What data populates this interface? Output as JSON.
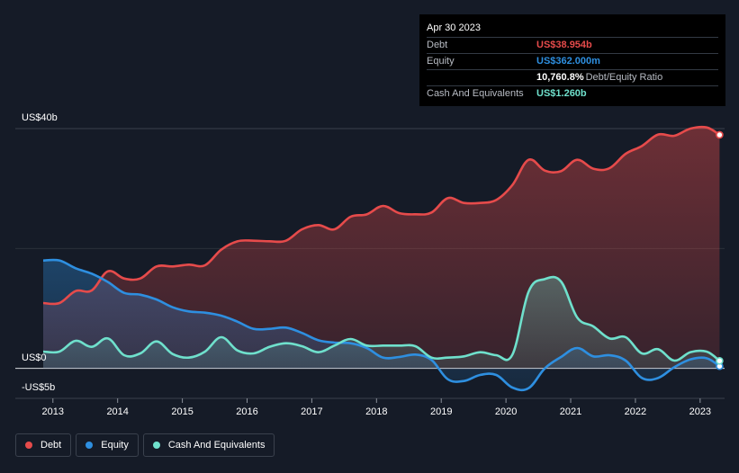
{
  "tooltip": {
    "date": "Apr 30 2023",
    "debt_label": "Debt",
    "debt_value": "US$38.954b",
    "equity_label": "Equity",
    "equity_value": "US$362.000m",
    "ratio_value": "10,760.8%",
    "ratio_label": "Debt/Equity Ratio",
    "cash_label": "Cash And Equivalents",
    "cash_value": "US$1.260b"
  },
  "legend": [
    {
      "label": "Debt",
      "color": "#e64b4b"
    },
    {
      "label": "Equity",
      "color": "#2e8fe0"
    },
    {
      "label": "Cash And Equivalents",
      "color": "#6fe0cc"
    }
  ],
  "colors": {
    "debt": "#e64b4b",
    "equity": "#2e8fe0",
    "cash": "#6fe0cc",
    "background": "#151b27"
  },
  "chart_data": {
    "type": "area",
    "title": "",
    "xlabel": "",
    "ylabel": "",
    "ylim": [
      -5,
      40
    ],
    "y_axis_labels": [
      {
        "value": 40,
        "label": "US$40b"
      },
      {
        "value": 0,
        "label": "US$0"
      },
      {
        "value": -5,
        "label": "-US$5b"
      }
    ],
    "xlim": [
      2012.85,
      2023.35
    ],
    "x_ticks": [
      {
        "value": 2013,
        "label": "2013"
      },
      {
        "value": 2014,
        "label": "2014"
      },
      {
        "value": 2015,
        "label": "2015"
      },
      {
        "value": 2016,
        "label": "2016"
      },
      {
        "value": 2017,
        "label": "2017"
      },
      {
        "value": 2018,
        "label": "2018"
      },
      {
        "value": 2019,
        "label": "2019"
      },
      {
        "value": 2020,
        "label": "2020"
      },
      {
        "value": 2021,
        "label": "2021"
      },
      {
        "value": 2022,
        "label": "2022"
      },
      {
        "value": 2023,
        "label": "2023"
      }
    ],
    "x": [
      2012.85,
      2013.1,
      2013.35,
      2013.6,
      2013.85,
      2014.1,
      2014.35,
      2014.6,
      2014.85,
      2015.1,
      2015.35,
      2015.6,
      2015.85,
      2016.1,
      2016.35,
      2016.6,
      2016.85,
      2017.1,
      2017.35,
      2017.6,
      2017.85,
      2018.1,
      2018.35,
      2018.6,
      2018.85,
      2019.1,
      2019.35,
      2019.6,
      2019.85,
      2020.1,
      2020.35,
      2020.6,
      2020.85,
      2021.1,
      2021.35,
      2021.6,
      2021.85,
      2022.1,
      2022.35,
      2022.6,
      2022.85,
      2023.1,
      2023.3
    ],
    "series": [
      {
        "name": "Debt",
        "values": [
          10.9,
          10.9,
          12.9,
          13.0,
          16.2,
          15.0,
          15.0,
          17.0,
          17.0,
          17.3,
          17.2,
          19.8,
          21.2,
          21.3,
          21.2,
          21.3,
          23.2,
          23.9,
          23.2,
          25.3,
          25.7,
          27.1,
          25.9,
          25.7,
          26.0,
          28.4,
          27.6,
          27.6,
          28.1,
          30.6,
          34.8,
          33.0,
          32.9,
          34.8,
          33.3,
          33.4,
          35.8,
          37.1,
          39.0,
          38.8,
          40.0,
          40.2,
          38.954
        ]
      },
      {
        "name": "Equity",
        "values": [
          18.0,
          18.0,
          16.7,
          15.8,
          14.4,
          12.6,
          12.3,
          11.5,
          10.2,
          9.5,
          9.3,
          8.8,
          7.8,
          6.6,
          6.6,
          6.8,
          5.9,
          4.7,
          4.3,
          4.2,
          3.4,
          1.8,
          1.9,
          2.3,
          1.4,
          -1.8,
          -2.1,
          -1.1,
          -1.1,
          -3.2,
          -3.3,
          0.0,
          1.9,
          3.4,
          2.0,
          2.2,
          1.3,
          -1.6,
          -1.6,
          0.2,
          1.5,
          1.7,
          0.362
        ]
      },
      {
        "name": "Cash And Equivalents",
        "values": [
          2.8,
          2.8,
          4.6,
          3.6,
          5.0,
          2.2,
          2.5,
          4.5,
          2.4,
          1.8,
          2.8,
          5.2,
          3.0,
          2.5,
          3.6,
          4.2,
          3.7,
          2.7,
          3.8,
          4.9,
          3.8,
          3.8,
          3.8,
          3.7,
          1.8,
          1.8,
          2.0,
          2.7,
          2.2,
          2.3,
          12.8,
          14.9,
          14.5,
          8.5,
          7.0,
          5.0,
          5.2,
          2.5,
          3.2,
          1.3,
          2.7,
          2.8,
          1.26
        ]
      }
    ]
  }
}
